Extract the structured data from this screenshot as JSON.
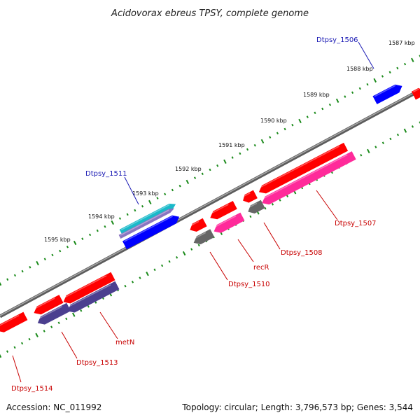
{
  "title": "Acidovorax ebreus TPSY, complete genome",
  "footer": {
    "accession": "Accession: NC_011992",
    "topology": "Topology: circular; Length: 3,796,573 bp; Genes: 3,544"
  },
  "colors": {
    "backbone": "#7a7a7a",
    "tick": "#1a8a1a",
    "label_forward": "#1a1ab4",
    "label_reverse": "#c80000",
    "gene_red": "#ff0000",
    "gene_blue": "#0000ff",
    "gene_pink": "#ff2a9a",
    "gene_gray": "#666666",
    "gene_navy": "#4b3f8f",
    "gene_cyan": "#19b9c9"
  },
  "ticks": [
    "1587 kbp",
    "1588 kbp",
    "1589 kbp",
    "1590 kbp",
    "1591 kbp",
    "1592 kbp",
    "1593 kbp",
    "1594 kbp",
    "1595 kbp"
  ],
  "gene_labels": [
    "Dtpsy_1506",
    "Dtpsy_1511",
    "Dtpsy_1507",
    "recR",
    "Dtpsy_1508",
    "Dtpsy_1510",
    "metN",
    "Dtpsy_1513",
    "Dtpsy_1514"
  ]
}
